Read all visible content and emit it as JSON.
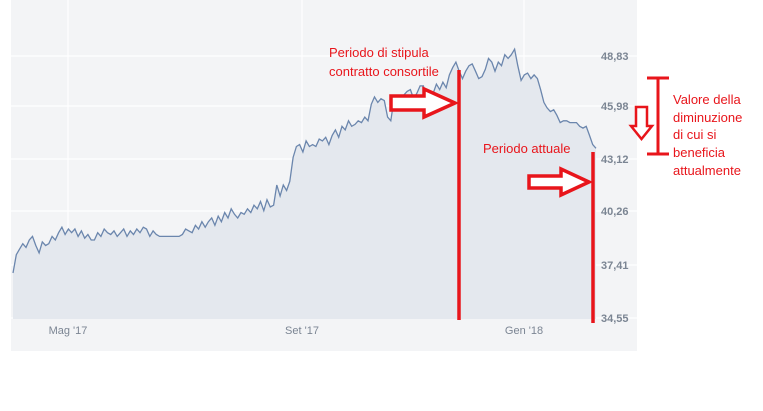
{
  "chart_data": {
    "type": "area",
    "title": "",
    "xlabel": "",
    "ylabel": "",
    "x_ticks": [
      "Mag '17",
      "Set '17",
      "Gen '18"
    ],
    "y_ticks": [
      "34,55",
      "37,41",
      "40,26",
      "43,12",
      "45,98",
      "48,83"
    ],
    "ylim": [
      34.55,
      50.0
    ],
    "grid": true,
    "series": [
      {
        "values": [
          37.0,
          38.0,
          38.3,
          38.6,
          38.4,
          38.8,
          39.0,
          38.5,
          38.1,
          38.7,
          38.5,
          38.6,
          39.0,
          38.8,
          39.2,
          39.5,
          39.1,
          39.4,
          39.2,
          39.4,
          39.0,
          39.3,
          38.9,
          39.1,
          38.8,
          38.8,
          39.2,
          39.0,
          39.4,
          39.2,
          39.1,
          39.3,
          39.0,
          39.2,
          39.4,
          39.0,
          39.3,
          39.1,
          39.4,
          39.2,
          39.5,
          39.4,
          39.0,
          39.3,
          39.1,
          39.0,
          39.0,
          39.0,
          39.0,
          39.0,
          39.0,
          39.0,
          39.1,
          39.4,
          39.3,
          39.2,
          39.6,
          39.4,
          39.8,
          39.5,
          39.8,
          40.0,
          39.6,
          40.1,
          39.8,
          40.3,
          40.0,
          40.5,
          40.2,
          40.0,
          40.3,
          40.2,
          40.5,
          40.3,
          40.7,
          40.5,
          40.9,
          40.4,
          41.0,
          40.6,
          40.7,
          41.8,
          41.2,
          41.8,
          41.5,
          42.0,
          43.3,
          43.9,
          44.0,
          43.6,
          44.2,
          43.9,
          44.0,
          43.9,
          44.3,
          44.2,
          44.4,
          44.0,
          44.5,
          44.8,
          44.4,
          45.0,
          44.8,
          45.3,
          45.0,
          45.1,
          45.3,
          45.2,
          45.5,
          45.3,
          46.2,
          46.6,
          46.3,
          46.5,
          46.4,
          45.5,
          45.3,
          46.5,
          46.3,
          46.5,
          46.7,
          46.9,
          47.0,
          46.5,
          46.8,
          47.2,
          47.2,
          46.5,
          46.7,
          46.8,
          47.3,
          47.0,
          47.4,
          47.1,
          47.8,
          48.2,
          48.5,
          48.0,
          47.6,
          48.0,
          48.3,
          48.4,
          48.0,
          47.6,
          47.7,
          48.1,
          48.7,
          48.5,
          48.0,
          48.5,
          48.3,
          48.9,
          48.7,
          48.9,
          49.2,
          48.3,
          47.5,
          47.8,
          47.9,
          47.6,
          47.8,
          47.6,
          47.0,
          46.3,
          46.0,
          45.8,
          45.9,
          45.6,
          45.2,
          45.3,
          45.3,
          45.2,
          45.2,
          45.2,
          45.0,
          44.9,
          45.0,
          44.5,
          44.0,
          43.8
        ]
      }
    ]
  },
  "annotations": {
    "stipula_line1": "Periodo di stipula",
    "stipula_line2": "contratto consortile",
    "attuale": "Periodo attuale",
    "valore_lines": [
      "Valore della",
      "diminuzione",
      "di cui si",
      "beneficia",
      "attualmente"
    ]
  },
  "colors": {
    "line": "#6b86ad",
    "area": "#e4e8ee",
    "plot_bg": "#f3f4f6",
    "grid": "#ffffff",
    "annotation": "#e8151b"
  }
}
